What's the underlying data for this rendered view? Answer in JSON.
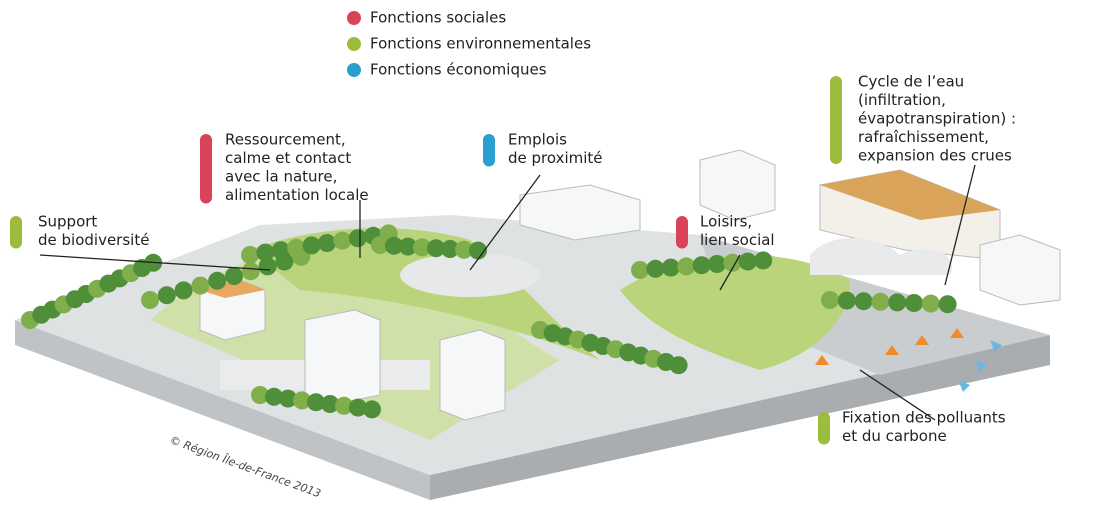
{
  "legend": [
    {
      "label": "Fonctions sociales",
      "color": "#d9435a"
    },
    {
      "label": "Fonctions environnementales",
      "color": "#9cbd3b"
    },
    {
      "label": "Fonctions économiques",
      "color": "#2a9fd0"
    }
  ],
  "annotations": [
    {
      "lines": [
        "Ressourcement,",
        "calme et contact",
        "avec la nature,",
        "alimentation locale"
      ],
      "color": "#d9435a"
    },
    {
      "lines": [
        "Emplois",
        "de proximité"
      ],
      "color": "#2a9fd0"
    },
    {
      "lines": [
        "Support",
        "de biodiversité"
      ],
      "color": "#9cbd3b"
    },
    {
      "lines": [
        "Loisirs,",
        "lien social"
      ],
      "color": "#d9435a"
    },
    {
      "lines": [
        "Cycle de l’eau",
        "(infiltration,",
        "évapotranspiration) :",
        "rafraîchissement,",
        "expansion des crues"
      ],
      "color": "#9cbd3b"
    },
    {
      "lines": [
        "Fixation des polluants",
        "et du carbone"
      ],
      "color": "#9cbd3b"
    }
  ],
  "credit": "© Région Île-de-France 2013"
}
